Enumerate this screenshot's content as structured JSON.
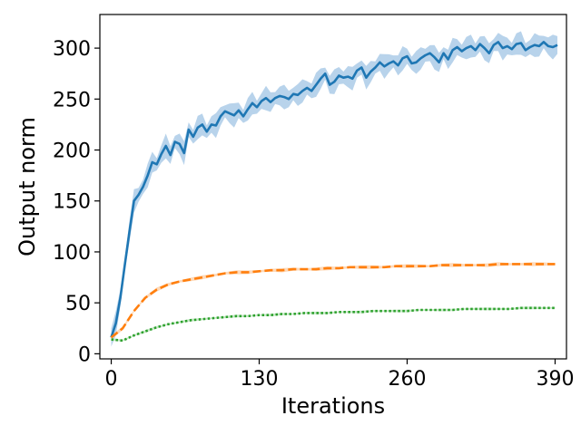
{
  "chart_data": {
    "type": "line",
    "xlabel": "Iterations",
    "ylabel": "Output norm",
    "xlim": [
      -10,
      400
    ],
    "ylim": [
      -5,
      333
    ],
    "xticks": [
      0,
      130,
      260,
      390
    ],
    "yticks": [
      0,
      50,
      100,
      150,
      200,
      250,
      300
    ],
    "grid": false,
    "legend": "none",
    "series": [
      {
        "color": "#1f77b4",
        "style": "solid",
        "band_color": "#a6c8e6",
        "x": [
          0,
          4,
          8,
          12,
          16,
          20,
          24,
          28,
          32,
          36,
          40,
          44,
          48,
          52,
          56,
          60,
          64,
          68,
          72,
          76,
          80,
          84,
          88,
          92,
          96,
          100,
          104,
          108,
          112,
          116,
          120,
          124,
          128,
          132,
          136,
          140,
          144,
          148,
          152,
          156,
          160,
          164,
          168,
          172,
          176,
          180,
          184,
          188,
          192,
          196,
          200,
          204,
          208,
          212,
          216,
          220,
          224,
          228,
          232,
          236,
          240,
          244,
          248,
          252,
          256,
          260,
          264,
          268,
          272,
          276,
          280,
          284,
          288,
          292,
          296,
          300,
          304,
          308,
          312,
          316,
          320,
          324,
          328,
          332,
          336,
          340,
          344,
          348,
          352,
          356,
          360,
          364,
          368,
          372,
          376,
          380,
          384,
          388,
          392
        ],
        "y": [
          16,
          30,
          55,
          88,
          120,
          150,
          156,
          164,
          175,
          188,
          186,
          196,
          204,
          195,
          208,
          206,
          197,
          220,
          213,
          222,
          225,
          218,
          225,
          224,
          233,
          238,
          236,
          234,
          239,
          233,
          240,
          246,
          242,
          248,
          251,
          247,
          251,
          253,
          252,
          250,
          255,
          254,
          258,
          261,
          258,
          264,
          270,
          275,
          264,
          267,
          273,
          271,
          272,
          270,
          278,
          281,
          271,
          277,
          281,
          286,
          282,
          285,
          287,
          283,
          290,
          292,
          285,
          286,
          290,
          293,
          295,
          291,
          286,
          295,
          289,
          298,
          301,
          297,
          300,
          302,
          298,
          304,
          300,
          295,
          303,
          306,
          300,
          302,
          299,
          304,
          305,
          298,
          301,
          303,
          302,
          306,
          302,
          301,
          303
        ],
        "band": 9
      },
      {
        "color": "#ff7f0e",
        "style": "dashed",
        "band_color": "#fdd0a8",
        "x": [
          0,
          10,
          20,
          30,
          40,
          50,
          60,
          70,
          80,
          90,
          100,
          110,
          120,
          130,
          140,
          150,
          160,
          170,
          180,
          190,
          200,
          210,
          220,
          230,
          240,
          250,
          260,
          270,
          280,
          290,
          300,
          310,
          320,
          330,
          340,
          350,
          360,
          370,
          380,
          390
        ],
        "y": [
          16,
          25,
          42,
          55,
          63,
          68,
          71,
          73,
          75,
          77,
          79,
          80,
          80,
          81,
          82,
          82,
          83,
          83,
          83,
          84,
          84,
          85,
          85,
          85,
          85,
          86,
          86,
          86,
          86,
          87,
          87,
          87,
          87,
          87,
          88,
          88,
          88,
          88,
          88,
          88
        ],
        "band": 1.5
      },
      {
        "color": "#2ca02c",
        "style": "dotted",
        "band_color": "#b9e3b9",
        "x": [
          0,
          10,
          20,
          30,
          40,
          50,
          60,
          70,
          80,
          90,
          100,
          110,
          120,
          130,
          140,
          150,
          160,
          170,
          180,
          190,
          200,
          210,
          220,
          230,
          240,
          250,
          260,
          270,
          280,
          290,
          300,
          310,
          320,
          330,
          340,
          350,
          360,
          370,
          380,
          390
        ],
        "y": [
          14,
          13,
          18,
          22,
          26,
          29,
          31,
          33,
          34,
          35,
          36,
          37,
          37,
          38,
          38,
          39,
          39,
          40,
          40,
          40,
          41,
          41,
          41,
          42,
          42,
          42,
          42,
          43,
          43,
          43,
          43,
          44,
          44,
          44,
          44,
          44,
          45,
          45,
          45,
          45
        ],
        "band": 1
      }
    ]
  }
}
